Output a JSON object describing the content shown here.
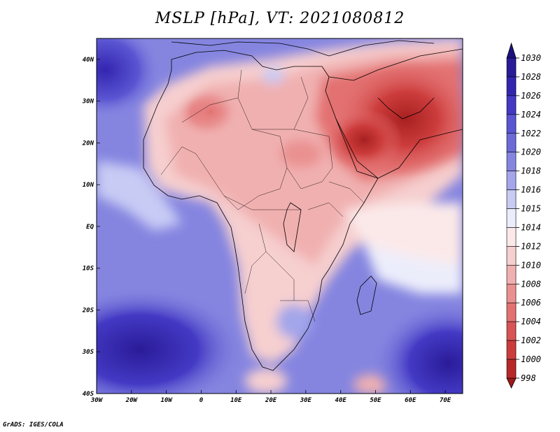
{
  "title": "MSLP [hPa], VT: 2021080812",
  "footer": "GrADS: IGES/COLA",
  "map": {
    "lon_range": [
      -30,
      75
    ],
    "lat_range": [
      -40,
      45
    ],
    "lon_ticks": [
      {
        "value": -30,
        "label": "30W"
      },
      {
        "value": -20,
        "label": "20W"
      },
      {
        "value": -10,
        "label": "10W"
      },
      {
        "value": 0,
        "label": "0"
      },
      {
        "value": 10,
        "label": "10E"
      },
      {
        "value": 20,
        "label": "20E"
      },
      {
        "value": 30,
        "label": "30E"
      },
      {
        "value": 40,
        "label": "40E"
      },
      {
        "value": 50,
        "label": "50E"
      },
      {
        "value": 60,
        "label": "60E"
      },
      {
        "value": 70,
        "label": "70E"
      }
    ],
    "lat_ticks": [
      {
        "value": 40,
        "label": "40N"
      },
      {
        "value": 30,
        "label": "30N"
      },
      {
        "value": 20,
        "label": "20N"
      },
      {
        "value": 10,
        "label": "10N"
      },
      {
        "value": 0,
        "label": "EQ"
      },
      {
        "value": -10,
        "label": "10S"
      },
      {
        "value": -20,
        "label": "20S"
      },
      {
        "value": -30,
        "label": "30S"
      },
      {
        "value": -40,
        "label": "40S"
      }
    ]
  },
  "colorbar": {
    "labels": [
      "1030",
      "1028",
      "1026",
      "1024",
      "1022",
      "1020",
      "1018",
      "1016",
      "1015",
      "1014",
      "1012",
      "1010",
      "1008",
      "1006",
      "1004",
      "1002",
      "1000",
      "998"
    ],
    "colors": [
      "#2a1b98",
      "#3325b0",
      "#4339c4",
      "#5a55d2",
      "#6d6ad8",
      "#8585e0",
      "#a3a6ea",
      "#c8cbf4",
      "#ecedfb",
      "#fbe9e9",
      "#f6cfcf",
      "#f1b0b0",
      "#ea9090",
      "#e37171",
      "#d95454",
      "#cc3c3c",
      "#b82828"
    ]
  }
}
